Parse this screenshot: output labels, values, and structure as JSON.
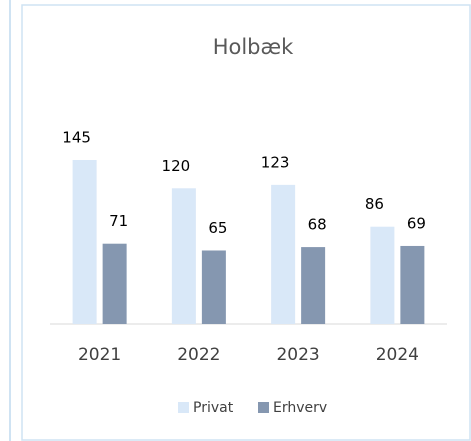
{
  "chart_data": {
    "type": "bar",
    "title": "Holbæk",
    "categories": [
      "2021",
      "2022",
      "2023",
      "2024"
    ],
    "series": [
      {
        "name": "Privat",
        "color": "#d9e8f8",
        "values": [
          145,
          120,
          123,
          86
        ]
      },
      {
        "name": "Erhverv",
        "color": "#8597b0",
        "values": [
          71,
          65,
          68,
          69
        ]
      }
    ],
    "legend": "bottom"
  }
}
